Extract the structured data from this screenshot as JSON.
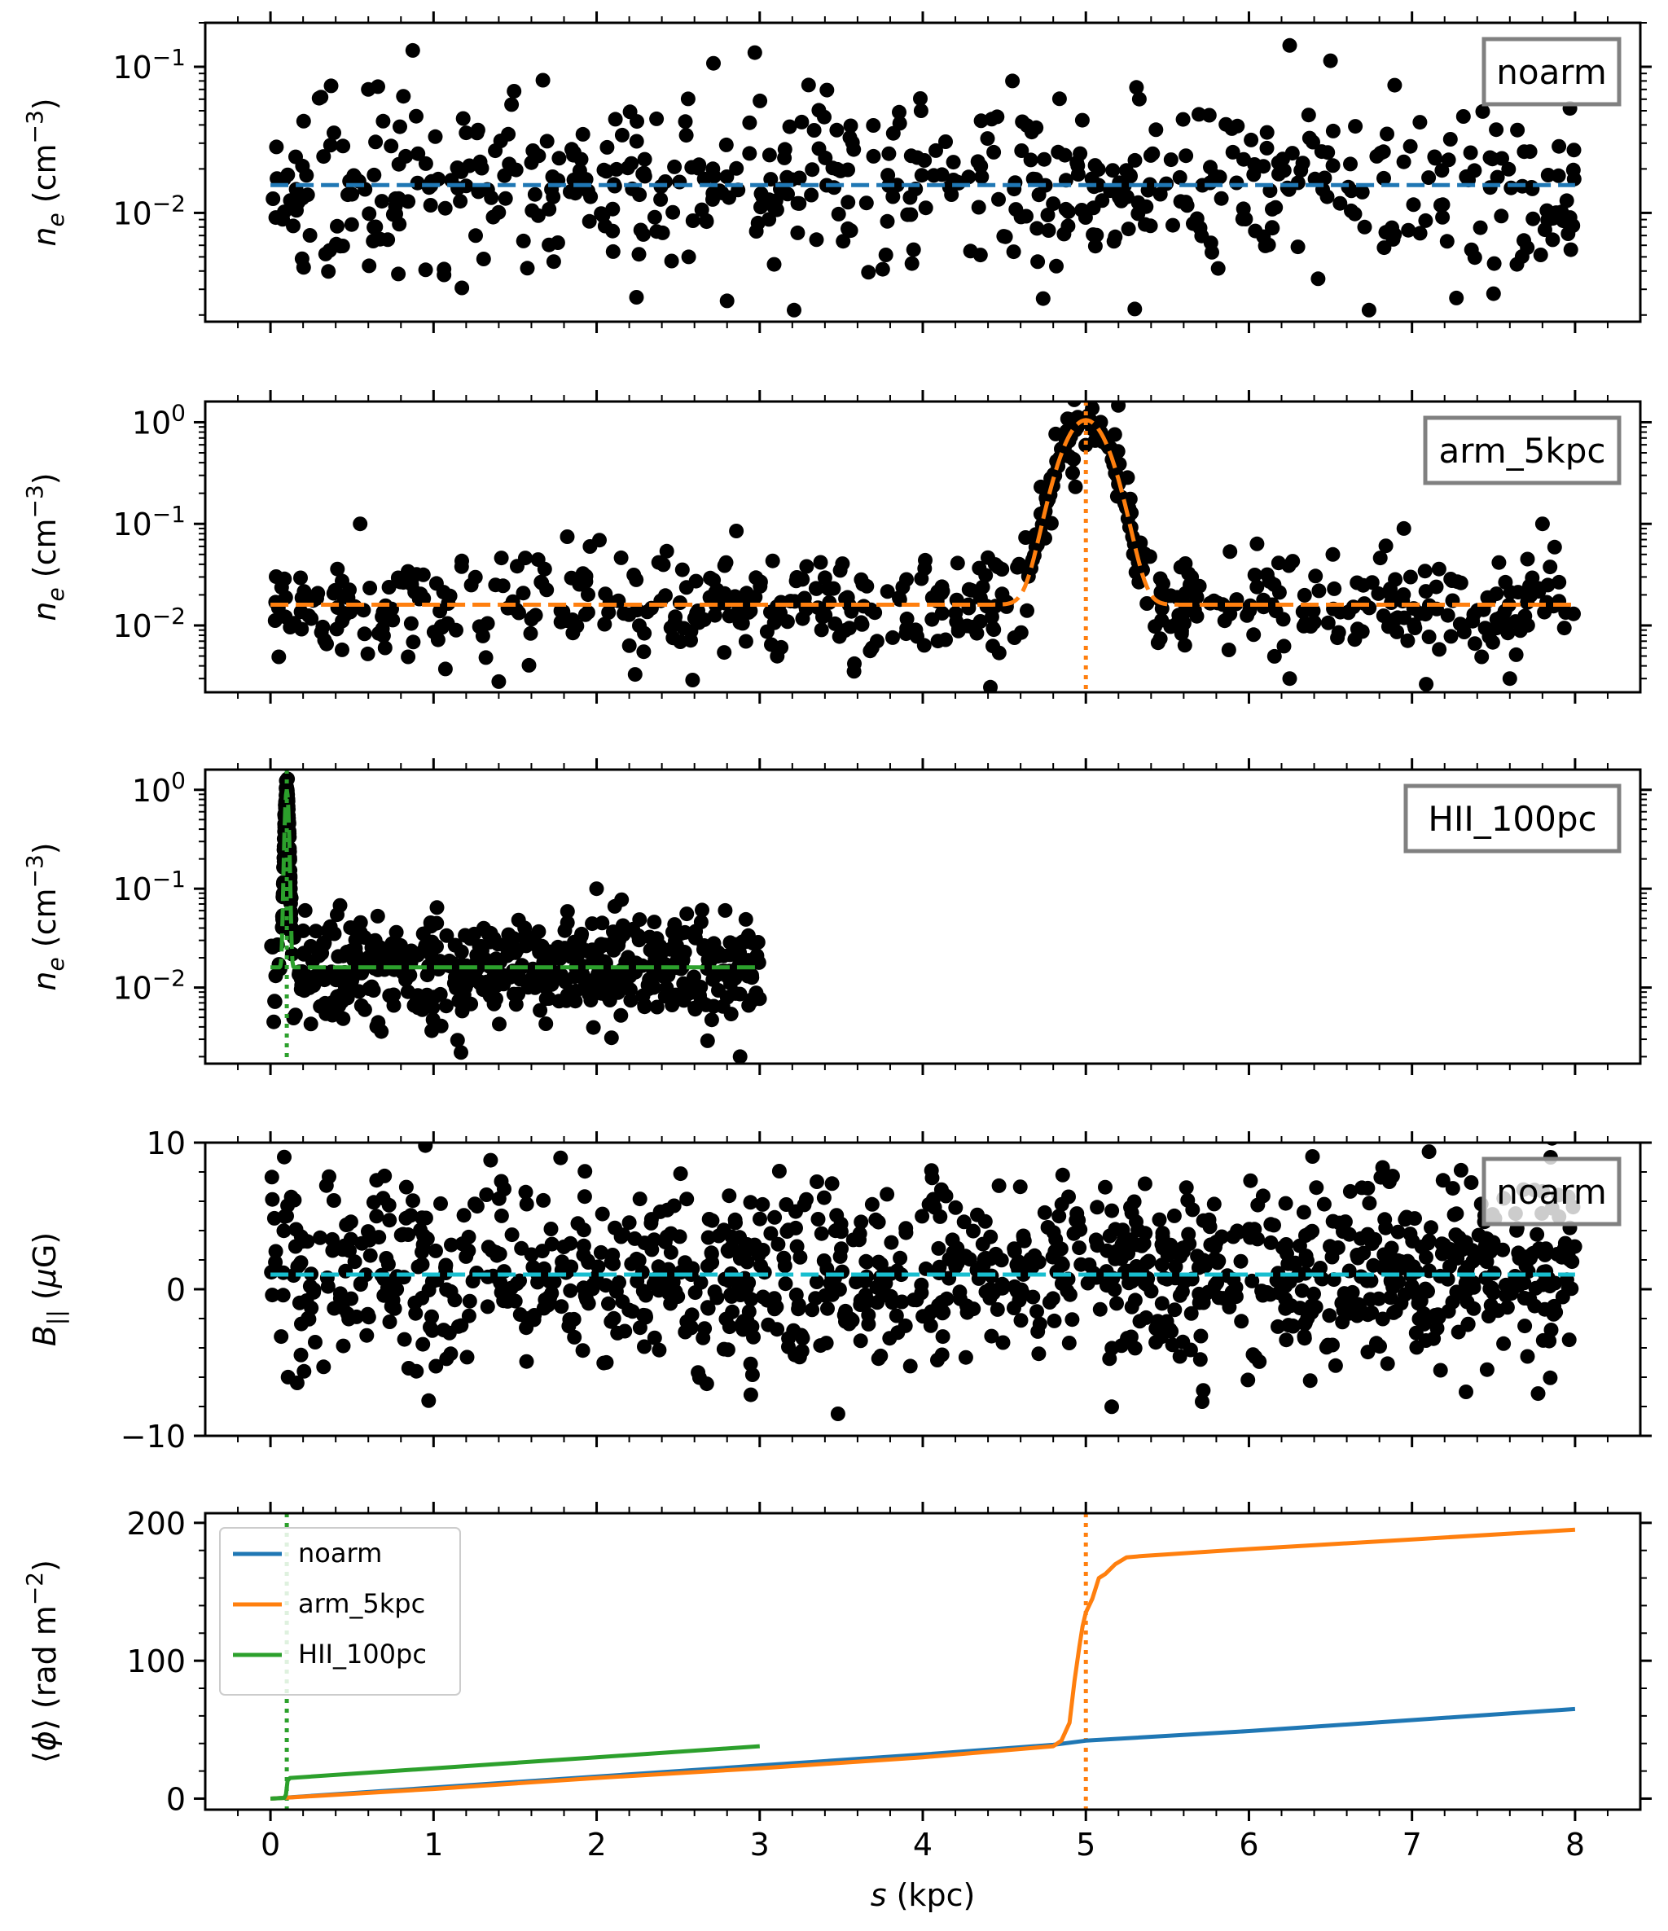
{
  "chart_data": [
    {
      "type": "scatter",
      "panel": "ne_noarm",
      "yscale": "log",
      "ylim": [
        0.0018,
        0.2
      ],
      "ytick_values": [
        0.1,
        0.01
      ],
      "ytick_labels": [
        "10^-1",
        "10^-2"
      ],
      "ylabel": "n_e (cm^-3)",
      "annotation": "noarm",
      "scatter_color": "#000000",
      "model": {
        "name": "noarm",
        "color": "#1f77b4",
        "style": "dashed",
        "baseline": 0.0155,
        "x_range": [
          0,
          8
        ]
      },
      "scatter_x_range": [
        0,
        8
      ],
      "scatter_n": 560,
      "scatter_median": 0.0155,
      "scatter_log_sigma": 0.28,
      "outliers": [
        {
          "x": 2.97,
          "y": 0.125
        },
        {
          "x": 3.3,
          "y": 0.075
        },
        {
          "x": 6.25,
          "y": 0.14
        },
        {
          "x": 6.5,
          "y": 0.11
        },
        {
          "x": 0.6,
          "y": 0.07
        },
        {
          "x": 4.55,
          "y": 0.08
        },
        {
          "x": 5.3,
          "y": 0.0022
        },
        {
          "x": 2.8,
          "y": 0.0025
        },
        {
          "x": 7.5,
          "y": 0.0028
        }
      ]
    },
    {
      "type": "scatter",
      "panel": "ne_arm",
      "yscale": "log",
      "ylim": [
        0.0022,
        1.6
      ],
      "ytick_values": [
        1,
        0.1,
        0.01
      ],
      "ytick_labels": [
        "10^0",
        "10^-1",
        "10^-2"
      ],
      "ylabel": "n_e (cm^-3)",
      "annotation": "arm_5kpc",
      "scatter_color": "#000000",
      "model": {
        "name": "arm_5kpc",
        "color": "#ff7f0e",
        "style": "dashed",
        "baseline": 0.016,
        "peak_center": 5.0,
        "peak_value": 1.05,
        "peak_sigma": 0.12,
        "x_range": [
          0,
          8
        ]
      },
      "marker_line": {
        "x": 5.0,
        "color": "#ff7f0e",
        "style": "dotted"
      },
      "scatter_x_range": [
        0,
        8
      ],
      "scatter_n": 560,
      "scatter_median": 0.016,
      "scatter_log_sigma": 0.27,
      "outliers": [
        {
          "x": 0.55,
          "y": 0.1
        },
        {
          "x": 7.8,
          "y": 0.1
        },
        {
          "x": 6.95,
          "y": 0.09
        },
        {
          "x": 1.4,
          "y": 0.0028
        },
        {
          "x": 6.25,
          "y": 0.003
        },
        {
          "x": 7.6,
          "y": 0.003
        }
      ]
    },
    {
      "type": "scatter",
      "panel": "ne_hii",
      "yscale": "log",
      "ylim": [
        0.0017,
        1.6
      ],
      "ytick_values": [
        1,
        0.1,
        0.01
      ],
      "ytick_labels": [
        "10^0",
        "10^-1",
        "10^-2"
      ],
      "ylabel": "n_e (cm^-3)",
      "annotation": "HII_100pc",
      "scatter_color": "#000000",
      "model": {
        "name": "HII_100pc",
        "color": "#2ca02c",
        "style": "dashed",
        "baseline": 0.016,
        "peak_center": 0.1,
        "peak_value": 1.0,
        "peak_sigma": 0.01,
        "x_range": [
          0,
          3
        ]
      },
      "marker_line": {
        "x": 0.1,
        "color": "#2ca02c",
        "style": "dotted"
      },
      "scatter_x_range": [
        0,
        3
      ],
      "scatter_n": 560,
      "scatter_median": 0.016,
      "scatter_log_sigma": 0.26,
      "outliers": [
        {
          "x": 2.0,
          "y": 0.1
        },
        {
          "x": 2.88,
          "y": 0.002
        },
        {
          "x": 0.02,
          "y": 0.0045
        }
      ]
    },
    {
      "type": "scatter",
      "panel": "b_par",
      "yscale": "linear",
      "ylim": [
        -10,
        10
      ],
      "ytick_values": [
        10,
        0,
        -10
      ],
      "ytick_labels": [
        "10",
        "0",
        "−10"
      ],
      "ylabel": "B_|| (μG)",
      "annotation": "noarm",
      "scatter_color": "#000000",
      "model": {
        "name": "noarm",
        "color": "#17becf",
        "style": "dashed",
        "baseline": 1.0,
        "x_range": [
          0,
          8
        ]
      },
      "scatter_x_range": [
        0,
        8
      ],
      "scatter_n": 1100,
      "scatter_median": 1.0,
      "scatter_sigma": 3.0,
      "outliers": [
        {
          "x": 0.95,
          "y": 9.8
        },
        {
          "x": 1.35,
          "y": 8.8
        },
        {
          "x": 7.85,
          "y": 9.0
        },
        {
          "x": 3.48,
          "y": -8.5
        },
        {
          "x": 0.97,
          "y": -7.6
        },
        {
          "x": 5.72,
          "y": -6.9
        }
      ]
    },
    {
      "type": "line",
      "panel": "rm",
      "yscale": "linear",
      "ylim": [
        -8,
        207
      ],
      "ytick_values": [
        200,
        100,
        0
      ],
      "ytick_labels": [
        "200",
        "100",
        "0"
      ],
      "ylabel": "⟨ϕ⟩ (rad m^-2)",
      "xlabel": "s (kpc)",
      "xlim": [
        -0.4,
        8.4
      ],
      "xtick_values": [
        0,
        1,
        2,
        3,
        4,
        5,
        6,
        7,
        8
      ],
      "xtick_labels": [
        "0",
        "1",
        "2",
        "3",
        "4",
        "5",
        "6",
        "7",
        "8"
      ],
      "marker_lines": [
        {
          "x": 0.1,
          "color": "#2ca02c",
          "style": "dotted"
        },
        {
          "x": 5.0,
          "color": "#ff7f0e",
          "style": "dotted"
        }
      ],
      "legend_position": "upper-left",
      "series": [
        {
          "name": "noarm",
          "color": "#1f77b4",
          "x": [
            0,
            1,
            2,
            3,
            4,
            4.8,
            5,
            6,
            7,
            8
          ],
          "y": [
            0,
            8,
            16,
            24,
            32,
            39,
            42,
            49,
            57,
            65
          ]
        },
        {
          "name": "arm_5kpc",
          "color": "#ff7f0e",
          "x": [
            0,
            1,
            2,
            3,
            4,
            4.8,
            4.85,
            4.9,
            4.93,
            4.96,
            4.98,
            5.0,
            5.04,
            5.08,
            5.12,
            5.18,
            5.25,
            5.35,
            6,
            7,
            8
          ],
          "y": [
            0,
            7,
            15,
            22,
            30,
            38,
            42,
            55,
            85,
            110,
            125,
            135,
            145,
            160,
            163,
            170,
            175,
            176,
            181,
            188,
            195
          ]
        },
        {
          "name": "HII_100pc",
          "color": "#2ca02c",
          "x": [
            0,
            0.085,
            0.095,
            0.1,
            0.105,
            0.12,
            1,
            2,
            3
          ],
          "y": [
            0,
            0.5,
            3,
            8,
            13,
            15,
            22,
            30,
            38
          ]
        }
      ]
    }
  ]
}
